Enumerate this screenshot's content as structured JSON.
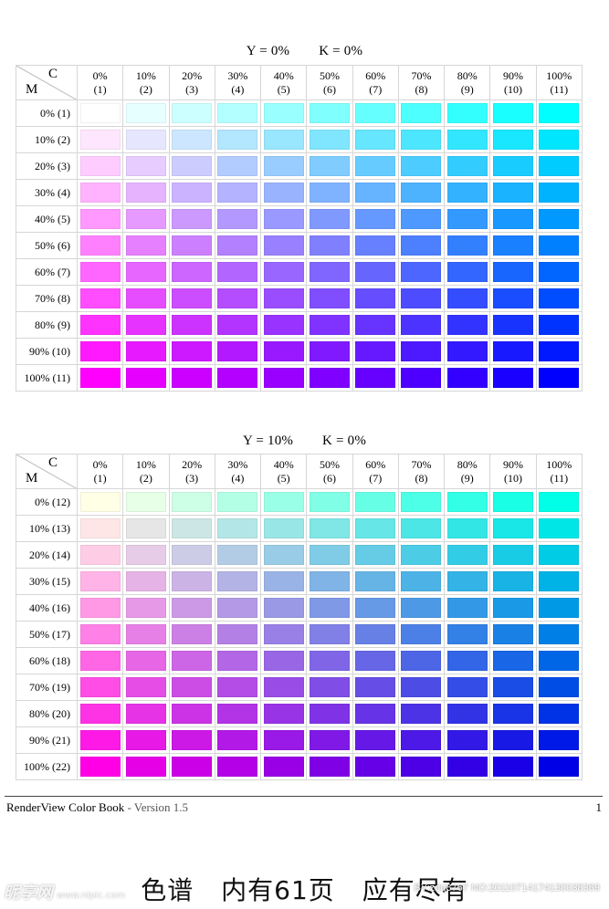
{
  "tables": [
    {
      "y_label": "Y = 0%",
      "k_label": "K = 0%",
      "y_percent": 0,
      "k_percent": 0,
      "corner": {
        "m": "M",
        "c": "C"
      },
      "columns": [
        {
          "pct": "0%",
          "idx": "(1)"
        },
        {
          "pct": "10%",
          "idx": "(2)"
        },
        {
          "pct": "20%",
          "idx": "(3)"
        },
        {
          "pct": "30%",
          "idx": "(4)"
        },
        {
          "pct": "40%",
          "idx": "(5)"
        },
        {
          "pct": "50%",
          "idx": "(6)"
        },
        {
          "pct": "60%",
          "idx": "(7)"
        },
        {
          "pct": "70%",
          "idx": "(8)"
        },
        {
          "pct": "80%",
          "idx": "(9)"
        },
        {
          "pct": "90%",
          "idx": "(10)"
        },
        {
          "pct": "100%",
          "idx": "(11)"
        }
      ],
      "rows": [
        "0% (1)",
        "10% (2)",
        "20% (3)",
        "30% (4)",
        "40% (5)",
        "50% (6)",
        "60% (7)",
        "70% (8)",
        "80% (9)",
        "90% (10)",
        "100% (11)"
      ]
    },
    {
      "y_label": "Y = 10%",
      "k_label": "K = 0%",
      "y_percent": 10,
      "k_percent": 0,
      "corner": {
        "m": "M",
        "c": "C"
      },
      "columns": [
        {
          "pct": "0%",
          "idx": "(1)"
        },
        {
          "pct": "10%",
          "idx": "(2)"
        },
        {
          "pct": "20%",
          "idx": "(3)"
        },
        {
          "pct": "30%",
          "idx": "(4)"
        },
        {
          "pct": "40%",
          "idx": "(5)"
        },
        {
          "pct": "50%",
          "idx": "(6)"
        },
        {
          "pct": "60%",
          "idx": "(7)"
        },
        {
          "pct": "70%",
          "idx": "(8)"
        },
        {
          "pct": "80%",
          "idx": "(9)"
        },
        {
          "pct": "90%",
          "idx": "(10)"
        },
        {
          "pct": "100%",
          "idx": "(11)"
        }
      ],
      "rows": [
        "0% (12)",
        "10% (13)",
        "20% (14)",
        "30% (15)",
        "40% (16)",
        "50% (17)",
        "60% (18)",
        "70% (19)",
        "80% (20)",
        "90% (21)",
        "100% (22)"
      ]
    }
  ],
  "footer": {
    "title": "RenderView Color Book",
    "version": " - Version 1.5",
    "page_number": "1"
  },
  "caption": {
    "part1": "色谱",
    "part2": "内有61页",
    "part3": "应有尽有"
  },
  "watermark": {
    "left": "昵享网",
    "left_sub": "www.nipic.com",
    "right": "BY:zdq8767 NO:20110714174130038369"
  }
}
